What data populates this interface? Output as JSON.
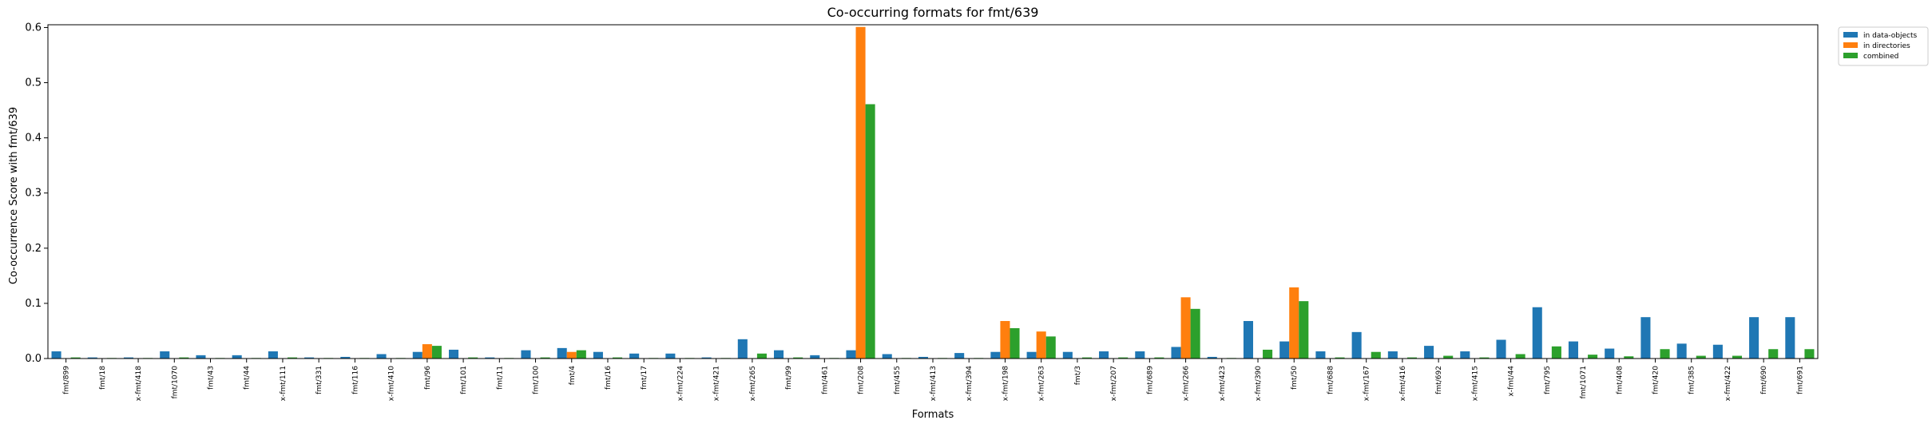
{
  "chart_data": {
    "type": "bar",
    "title": "Co-occurring formats for fmt/639",
    "xlabel": "Formats",
    "ylabel": "Co-occurrence Score with fmt/639",
    "ylim": [
      0,
      0.605
    ],
    "yticks": [
      0.0,
      0.1,
      0.2,
      0.3,
      0.4,
      0.5,
      0.6
    ],
    "ytick_labels": [
      "0.0",
      "0.1",
      "0.2",
      "0.3",
      "0.4",
      "0.5",
      "0.6"
    ],
    "grid": false,
    "legend_position": "top-right, outside plot",
    "categories": [
      "fmt/899",
      "fmt/18",
      "x-fmt/418",
      "fmt/1070",
      "fmt/43",
      "fmt/44",
      "x-fmt/111",
      "fmt/331",
      "fmt/116",
      "x-fmt/410",
      "fmt/96",
      "fmt/101",
      "fmt/11",
      "fmt/100",
      "fmt/4",
      "fmt/16",
      "fmt/17",
      "x-fmt/224",
      "x-fmt/421",
      "x-fmt/265",
      "fmt/99",
      "fmt/461",
      "fmt/208",
      "fmt/455",
      "x-fmt/413",
      "x-fmt/394",
      "x-fmt/198",
      "x-fmt/263",
      "fmt/3",
      "x-fmt/207",
      "fmt/689",
      "x-fmt/266",
      "x-fmt/423",
      "x-fmt/390",
      "fmt/50",
      "fmt/688",
      "x-fmt/167",
      "x-fmt/416",
      "fmt/692",
      "x-fmt/415",
      "x-fmt/44",
      "fmt/795",
      "fmt/1071",
      "fmt/408",
      "fmt/420",
      "fmt/385",
      "x-fmt/422",
      "fmt/690",
      "fmt/691"
    ],
    "series": [
      {
        "name": "in data-objects",
        "color": "#1f77b4",
        "values": [
          0.013,
          0.002,
          0.002,
          0.013,
          0.006,
          0.006,
          0.013,
          0.002,
          0.003,
          0.008,
          0.012,
          0.016,
          0.002,
          0.015,
          0.019,
          0.012,
          0.009,
          0.009,
          0.002,
          0.035,
          0.015,
          0.006,
          0.015,
          0.008,
          0.003,
          0.01,
          0.012,
          0.012,
          0.012,
          0.013,
          0.013,
          0.021,
          0.003,
          0.068,
          0.031,
          0.013,
          0.048,
          0.013,
          0.023,
          0.013,
          0.034,
          0.093,
          0.031,
          0.018,
          0.075,
          0.027,
          0.025,
          0.075,
          0.075
        ]
      },
      {
        "name": "in directories",
        "color": "#ff7f0e",
        "values": [
          0,
          0,
          0,
          0,
          0,
          0,
          0,
          0,
          0,
          0,
          0.026,
          0,
          0,
          0,
          0.012,
          0,
          0,
          0,
          0,
          0,
          0,
          0,
          0.601,
          0,
          0,
          0,
          0.068,
          0.049,
          0,
          0,
          0,
          0.111,
          0,
          0,
          0.129,
          0,
          0,
          0,
          0,
          0,
          0,
          0,
          0,
          0,
          0,
          0,
          0,
          0,
          0
        ]
      },
      {
        "name": "combined",
        "color": "#2ca02c",
        "values": [
          0.002,
          0.001,
          0.001,
          0.002,
          0.001,
          0.001,
          0.002,
          0.001,
          0.001,
          0.001,
          0.023,
          0.002,
          0.001,
          0.002,
          0.015,
          0.002,
          0.001,
          0.001,
          0.001,
          0.009,
          0.002,
          0.001,
          0.461,
          0.001,
          0.001,
          0.001,
          0.055,
          0.04,
          0.002,
          0.002,
          0.002,
          0.09,
          0.001,
          0.016,
          0.104,
          0.002,
          0.012,
          0.002,
          0.005,
          0.002,
          0.008,
          0.022,
          0.007,
          0.004,
          0.017,
          0.005,
          0.005,
          0.017,
          0.017
        ]
      }
    ]
  }
}
